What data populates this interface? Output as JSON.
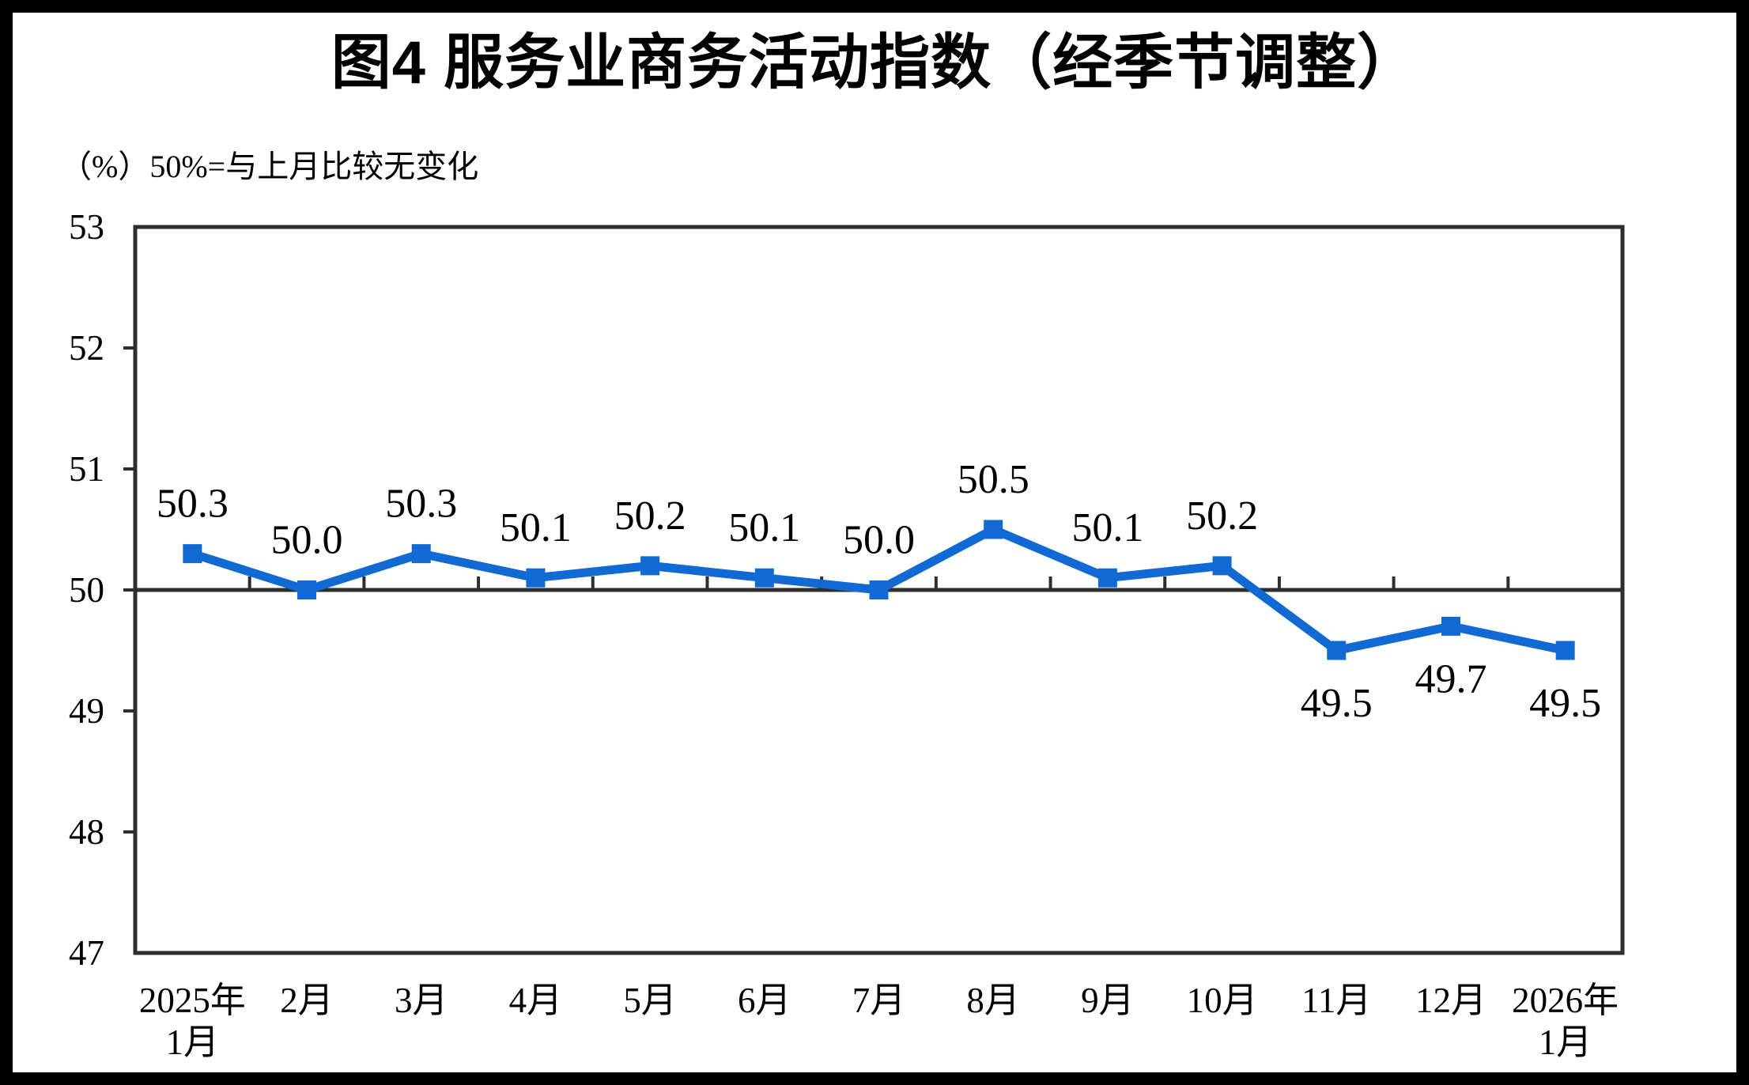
{
  "chart_data": {
    "type": "line",
    "title": "图4 服务业商务活动指数（经季节调整）",
    "unit_note": "（%）50%=与上月比较无变化",
    "xlabel": "",
    "ylabel": "%",
    "categories": [
      "2025年1月",
      "2月",
      "3月",
      "4月",
      "5月",
      "6月",
      "7月",
      "8月",
      "9月",
      "10月",
      "11月",
      "12月",
      "2026年1月"
    ],
    "category_tick_lines": [
      [
        "2025年",
        "1月"
      ],
      [
        "2月"
      ],
      [
        "3月"
      ],
      [
        "4月"
      ],
      [
        "5月"
      ],
      [
        "6月"
      ],
      [
        "7月"
      ],
      [
        "8月"
      ],
      [
        "9月"
      ],
      [
        "10月"
      ],
      [
        "11月"
      ],
      [
        "12月"
      ],
      [
        "2026年",
        "1月"
      ]
    ],
    "series": [
      {
        "name": "服务业商务活动指数（经季节调整）",
        "values": [
          50.3,
          50.0,
          50.3,
          50.1,
          50.2,
          50.1,
          50.0,
          50.5,
          50.1,
          50.2,
          49.5,
          49.7,
          49.5
        ],
        "labels": [
          "50.3",
          "50.0",
          "50.3",
          "50.1",
          "50.2",
          "50.1",
          "50.0",
          "50.5",
          "50.1",
          "50.2",
          "49.5",
          "49.7",
          "49.5"
        ]
      }
    ],
    "ylim": [
      47,
      53
    ],
    "yticks": [
      "47",
      "48",
      "49",
      "50",
      "51",
      "52",
      "53"
    ],
    "baseline_value": 50,
    "grid": false,
    "legend_position": "none",
    "marker": "square",
    "colors": {
      "line": "#1169d4",
      "axis": "#2e2e2e",
      "text": "#000000",
      "background": "#ffffff",
      "frame": "#000000"
    }
  }
}
